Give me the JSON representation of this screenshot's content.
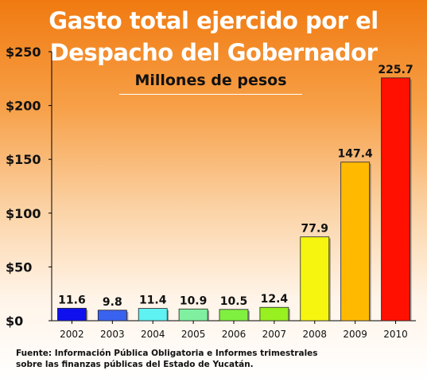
{
  "chart_data": {
    "type": "bar",
    "title": "Gasto total ejercido por el Despacho del Gobernador",
    "title_lines": [
      "Gasto total ejercido por el",
      "Despacho del Gobernador"
    ],
    "subtitle": "Millones de pesos",
    "categories": [
      "2002",
      "2003",
      "2004",
      "2005",
      "2006",
      "2007",
      "2008",
      "2009",
      "2010"
    ],
    "values": [
      11.6,
      9.8,
      11.4,
      10.9,
      10.5,
      12.4,
      77.9,
      147.4,
      225.7
    ],
    "value_labels": [
      "11.6",
      "9.8",
      "11.4",
      "10.9",
      "10.5",
      "12.4",
      "77.9",
      "147.4",
      "225.7"
    ],
    "bar_colors": [
      "#1010ee",
      "#3a62f0",
      "#5ef2f2",
      "#80f0a0",
      "#80f040",
      "#99f020",
      "#f5f510",
      "#ffba00",
      "#ff1000"
    ],
    "ylim": [
      0,
      250
    ],
    "yticks": [
      0,
      50,
      100,
      150,
      200,
      250
    ],
    "ytick_labels": [
      "$0",
      "$50",
      "$100",
      "$150",
      "$200",
      "$250"
    ],
    "grid": false,
    "legend": "none"
  },
  "footer": {
    "line1": "Fuente: Información Pública Obligatoria e Informes trimestrales",
    "line2": "sobre las finanzas públicas del Estado de Yucatán."
  }
}
